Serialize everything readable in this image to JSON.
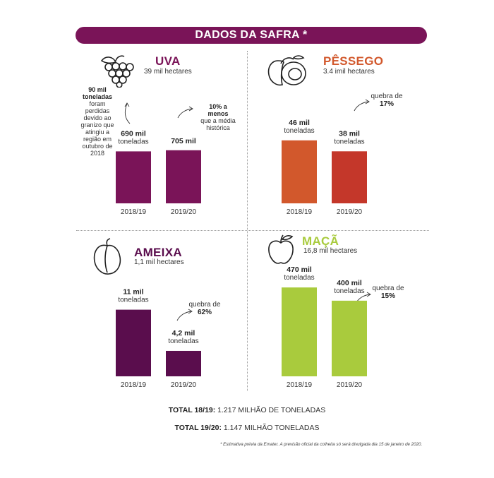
{
  "banner": "DADOS DA SAFRA *",
  "chart_data": [
    {
      "type": "bar",
      "title": "UVA",
      "subtitle": "39 mil hectares",
      "categories": [
        "2018/19",
        "2019/20"
      ],
      "values": [
        690,
        705
      ],
      "value_labels": [
        "690 mil",
        "705 mil"
      ],
      "unit_labels": [
        "toneladas",
        ""
      ],
      "color": "#7a1458",
      "ylim": [
        0,
        1200
      ],
      "annotation_left": {
        "bold": "90 mil toneladas",
        "text": "foram perdidas devido ao granizo que atingiu a região em outubro de 2018"
      },
      "annotation_right": {
        "bold": "10% a menos",
        "text": "que a média histórica"
      }
    },
    {
      "type": "bar",
      "title": "PÊSSEGO",
      "subtitle": "3.4 imil hectares",
      "categories": [
        "2018/19",
        "2019/20"
      ],
      "values": [
        46,
        38
      ],
      "value_labels": [
        "46 mil",
        "38 mil"
      ],
      "unit_labels": [
        "toneladas",
        "toneladas"
      ],
      "colors": [
        "#d2582c",
        "#c4372a"
      ],
      "ylim": [
        0,
        66
      ],
      "annotation_right": {
        "text": "quebra de",
        "bold": "17%"
      }
    },
    {
      "type": "bar",
      "title": "AMEIXA",
      "subtitle": "1,1 mil hectares",
      "categories": [
        "2018/19",
        "2019/20"
      ],
      "values": [
        11,
        4.2
      ],
      "value_labels": [
        "11 mil",
        "4,2 mil"
      ],
      "unit_labels": [
        "toneladas",
        "toneladas"
      ],
      "color": "#5a0d4d",
      "ylim": [
        0,
        15.5
      ],
      "annotation_right": {
        "text": "quebra de",
        "bold": "62%"
      }
    },
    {
      "type": "bar",
      "title": "MAÇÃ",
      "subtitle": "16,8 mil hectares",
      "categories": [
        "2018/19",
        "2019/20"
      ],
      "values": [
        470,
        400
      ],
      "value_labels": [
        "470 mil",
        "400 mil"
      ],
      "unit_labels": [
        "toneladas",
        "toneladas"
      ],
      "color": "#a9cb3d",
      "ylim": [
        0,
        590
      ],
      "annotation_right": {
        "text": "quebra de",
        "bold": "15%"
      }
    }
  ],
  "totals": [
    {
      "label": "TOTAL 18/19:",
      "value": "1.217 MILHÃO DE  TONELADAS"
    },
    {
      "label": "TOTAL 19/20:",
      "value": "1.147 MILHÃO TONELADAS"
    }
  ],
  "footnote": "* Estimativa prévia da Emater. A previsão oficial da colheita só será divulgada dia 15 de janeiro de 2020.",
  "colors": {
    "uva_title": "#7a1458",
    "pessego_title": "#d2582c",
    "ameixa_title": "#5a0d4d",
    "maca_title": "#a9cb3d"
  },
  "icons": [
    "grapes-icon",
    "peach-icon",
    "plum-icon",
    "apple-icon"
  ]
}
